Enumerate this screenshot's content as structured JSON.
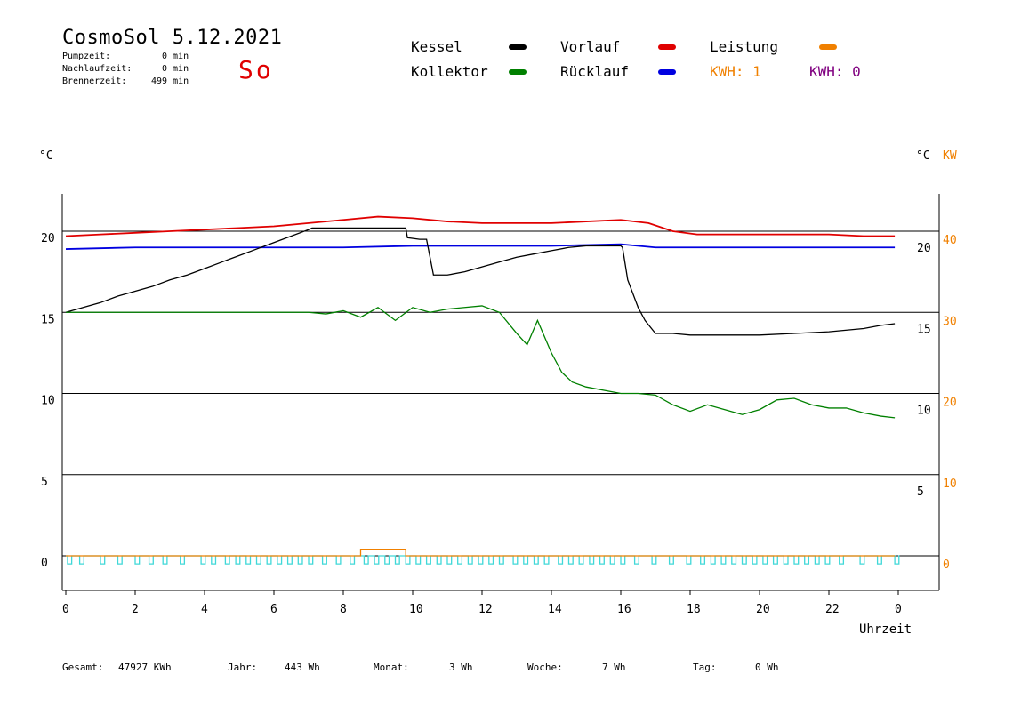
{
  "header": {
    "title": "CosmoSol 5.12.2021",
    "day": "So",
    "stats": [
      {
        "label": "Pumpzeit:",
        "value": "0 min"
      },
      {
        "label": "Nachlaufzeit:",
        "value": "0 min"
      },
      {
        "label": "Brennerzeit:",
        "value": "499 min"
      }
    ]
  },
  "legend": {
    "kessel": {
      "label": "Kessel",
      "color": "#000000"
    },
    "vorlauf": {
      "label": "Vorlauf",
      "color": "#e00000"
    },
    "leistung": {
      "label": "Leistung",
      "color": "#f08000"
    },
    "kollektor": {
      "label": "Kollektor",
      "color": "#008000"
    },
    "ruecklauf": {
      "label": "Rücklauf",
      "color": "#0000e0"
    },
    "kwh1": {
      "label": "KWH: 1",
      "color": "#f08000"
    },
    "kwh2": {
      "label": "KWH: 0",
      "color": "#800080"
    }
  },
  "units": {
    "left": "°C",
    "right_c": "°C",
    "right_kw": "KW"
  },
  "xlabel": "Uhrzeit",
  "footer": {
    "gesamt": {
      "label": "Gesamt:",
      "value": "47927 KWh"
    },
    "jahr": {
      "label": "Jahr:",
      "value": "443 Wh"
    },
    "monat": {
      "label": "Monat:",
      "value": "3 Wh"
    },
    "woche": {
      "label": "Woche:",
      "value": "7 Wh"
    },
    "tag": {
      "label": "Tag:",
      "value": "0 Wh"
    }
  },
  "chart_data": {
    "type": "line",
    "title": "CosmoSol 5.12.2021",
    "xlabel": "Uhrzeit",
    "ylabel": "°C",
    "xlim": [
      0,
      24
    ],
    "ylim": [
      -1.5,
      22.5
    ],
    "x_ticks": [
      "0",
      "2",
      "4",
      "6",
      "8",
      "10",
      "12",
      "14",
      "16",
      "18",
      "20",
      "22",
      "0"
    ],
    "y_ticks_left": [
      "0",
      "5",
      "10",
      "15",
      "20"
    ],
    "y_ticks_right_c": [
      "5",
      "10",
      "15",
      "20"
    ],
    "y_ticks_right_kw": [
      "0",
      "10",
      "20",
      "30",
      "40"
    ],
    "grid_y": [
      0,
      5,
      10,
      15,
      20
    ],
    "legend_position": "top",
    "series": [
      {
        "name": "Vorlauf",
        "color": "#e00000",
        "x": [
          0,
          1,
          2,
          3,
          4,
          5,
          6,
          7,
          8,
          9,
          10,
          11,
          12,
          13,
          14,
          15,
          16,
          16.8,
          17.5,
          18.2,
          19,
          20,
          21,
          22,
          23,
          23.9
        ],
        "y": [
          19.7,
          19.8,
          19.9,
          20.0,
          20.1,
          20.2,
          20.3,
          20.5,
          20.7,
          20.9,
          20.8,
          20.6,
          20.5,
          20.5,
          20.5,
          20.6,
          20.7,
          20.5,
          20.0,
          19.8,
          19.8,
          19.8,
          19.8,
          19.8,
          19.7,
          19.7
        ]
      },
      {
        "name": "Rücklauf",
        "color": "#0000e0",
        "x": [
          0,
          2,
          4,
          6,
          8,
          10,
          12,
          14,
          16,
          17,
          18,
          20,
          22,
          23.9
        ],
        "y": [
          18.9,
          19.0,
          19.0,
          19.0,
          19.0,
          19.1,
          19.1,
          19.1,
          19.2,
          19.0,
          19.0,
          19.0,
          19.0,
          19.0
        ]
      },
      {
        "name": "Kessel",
        "color": "#000000",
        "x": [
          0,
          0.5,
          1,
          1.5,
          2,
          2.5,
          3,
          3.5,
          4,
          4.5,
          5,
          5.5,
          6,
          6.5,
          7,
          7.1,
          9.8,
          9.85,
          10.2,
          10.4,
          10.6,
          11,
          11.5,
          12,
          12.5,
          13,
          13.5,
          14,
          14.5,
          15,
          15.5,
          16,
          16.05,
          16.2,
          16.5,
          16.7,
          17,
          17.5,
          18,
          18.5,
          19,
          20,
          21,
          22,
          23,
          23.5,
          23.9
        ],
        "y": [
          15.0,
          15.3,
          15.6,
          16.0,
          16.3,
          16.6,
          17.0,
          17.3,
          17.7,
          18.1,
          18.5,
          18.9,
          19.3,
          19.7,
          20.1,
          20.2,
          20.2,
          19.6,
          19.5,
          19.5,
          17.3,
          17.3,
          17.5,
          17.8,
          18.1,
          18.4,
          18.6,
          18.8,
          19.0,
          19.1,
          19.1,
          19.1,
          19.0,
          17.0,
          15.3,
          14.5,
          13.7,
          13.7,
          13.6,
          13.6,
          13.6,
          13.6,
          13.7,
          13.8,
          14.0,
          14.2,
          14.3
        ]
      },
      {
        "name": "Kollektor",
        "color": "#008000",
        "x": [
          0,
          1,
          2,
          3,
          4,
          5,
          6,
          7,
          7.5,
          8,
          8.5,
          9,
          9.5,
          10,
          10.5,
          11,
          11.5,
          12,
          12.5,
          13,
          13.3,
          13.6,
          14,
          14.3,
          14.6,
          15,
          15.5,
          16,
          16.5,
          17,
          17.5,
          18,
          18.5,
          19,
          19.5,
          20,
          20.5,
          21,
          21.5,
          22,
          22.5,
          23,
          23.5,
          23.9
        ],
        "y": [
          15.0,
          15.0,
          15.0,
          15.0,
          15.0,
          15.0,
          15.0,
          15.0,
          14.9,
          15.1,
          14.7,
          15.3,
          14.5,
          15.3,
          15.0,
          15.2,
          15.3,
          15.4,
          15.0,
          13.7,
          13.0,
          14.5,
          12.5,
          11.3,
          10.7,
          10.4,
          10.2,
          10.0,
          10.0,
          9.9,
          9.3,
          8.9,
          9.3,
          9.0,
          8.7,
          9.0,
          9.6,
          9.7,
          9.3,
          9.1,
          9.1,
          8.8,
          8.6,
          8.5
        ]
      },
      {
        "name": "Leistung",
        "color": "#f08000",
        "x": [
          0,
          8.5,
          8.5,
          9.8,
          9.8,
          23.9
        ],
        "y": [
          0,
          0,
          0.4,
          0.4,
          0,
          0
        ]
      }
    ],
    "pump_pulses": {
      "color": "#40d8d8",
      "values_x": [
        0.05,
        0.4,
        1.0,
        1.5,
        2.0,
        2.4,
        2.8,
        3.3,
        3.9,
        4.2,
        4.6,
        4.9,
        5.2,
        5.5,
        5.8,
        6.1,
        6.4,
        6.7,
        7.0,
        7.4,
        7.8,
        8.2,
        8.6,
        8.9,
        9.2,
        9.5,
        9.8,
        10.1,
        10.4,
        10.7,
        11.0,
        11.3,
        11.6,
        11.9,
        12.2,
        12.5,
        12.9,
        13.2,
        13.5,
        13.8,
        14.2,
        14.5,
        14.8,
        15.1,
        15.4,
        15.7,
        16.0,
        16.4,
        16.9,
        17.4,
        17.9,
        18.3,
        18.6,
        18.9,
        19.2,
        19.5,
        19.8,
        20.1,
        20.4,
        20.7,
        21.0,
        21.3,
        21.6,
        21.9,
        22.3,
        22.9,
        23.4,
        23.9
      ],
      "low": -0.5
    }
  }
}
